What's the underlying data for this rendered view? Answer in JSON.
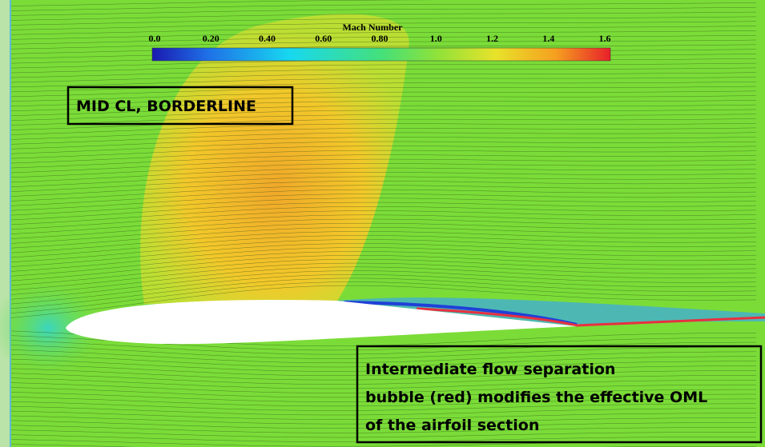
{
  "colorbar": {
    "title": "Mach Number",
    "ticks": [
      "0.0",
      "0.20",
      "0.40",
      "0.60",
      "0.80",
      "1.0",
      "1.2",
      "1.4",
      "1.6"
    ]
  },
  "annotations": {
    "label": "MID CL, BORDERLINE",
    "note": [
      "Intermediate flow separation",
      "bubble (red) modifies the effective OML",
      "of the airfoil section"
    ]
  }
}
